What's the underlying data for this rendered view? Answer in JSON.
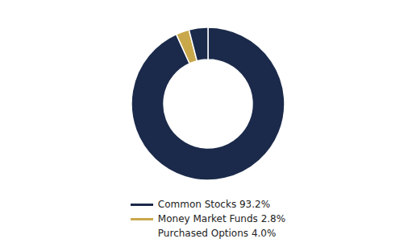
{
  "chart_data": {
    "type": "pie",
    "categories": [
      "Common Stocks 93.2%",
      "Money Market Funds 2.8%",
      null
    ],
    "values": [
      93.2,
      2.8,
      4.0
    ],
    "colors": [
      "#1b2a4a",
      "#c9a84c",
      "#1b2a4a"
    ],
    "annotations": [
      "Purchased Options 4.0%"
    ],
    "legend": "bottom"
  }
}
